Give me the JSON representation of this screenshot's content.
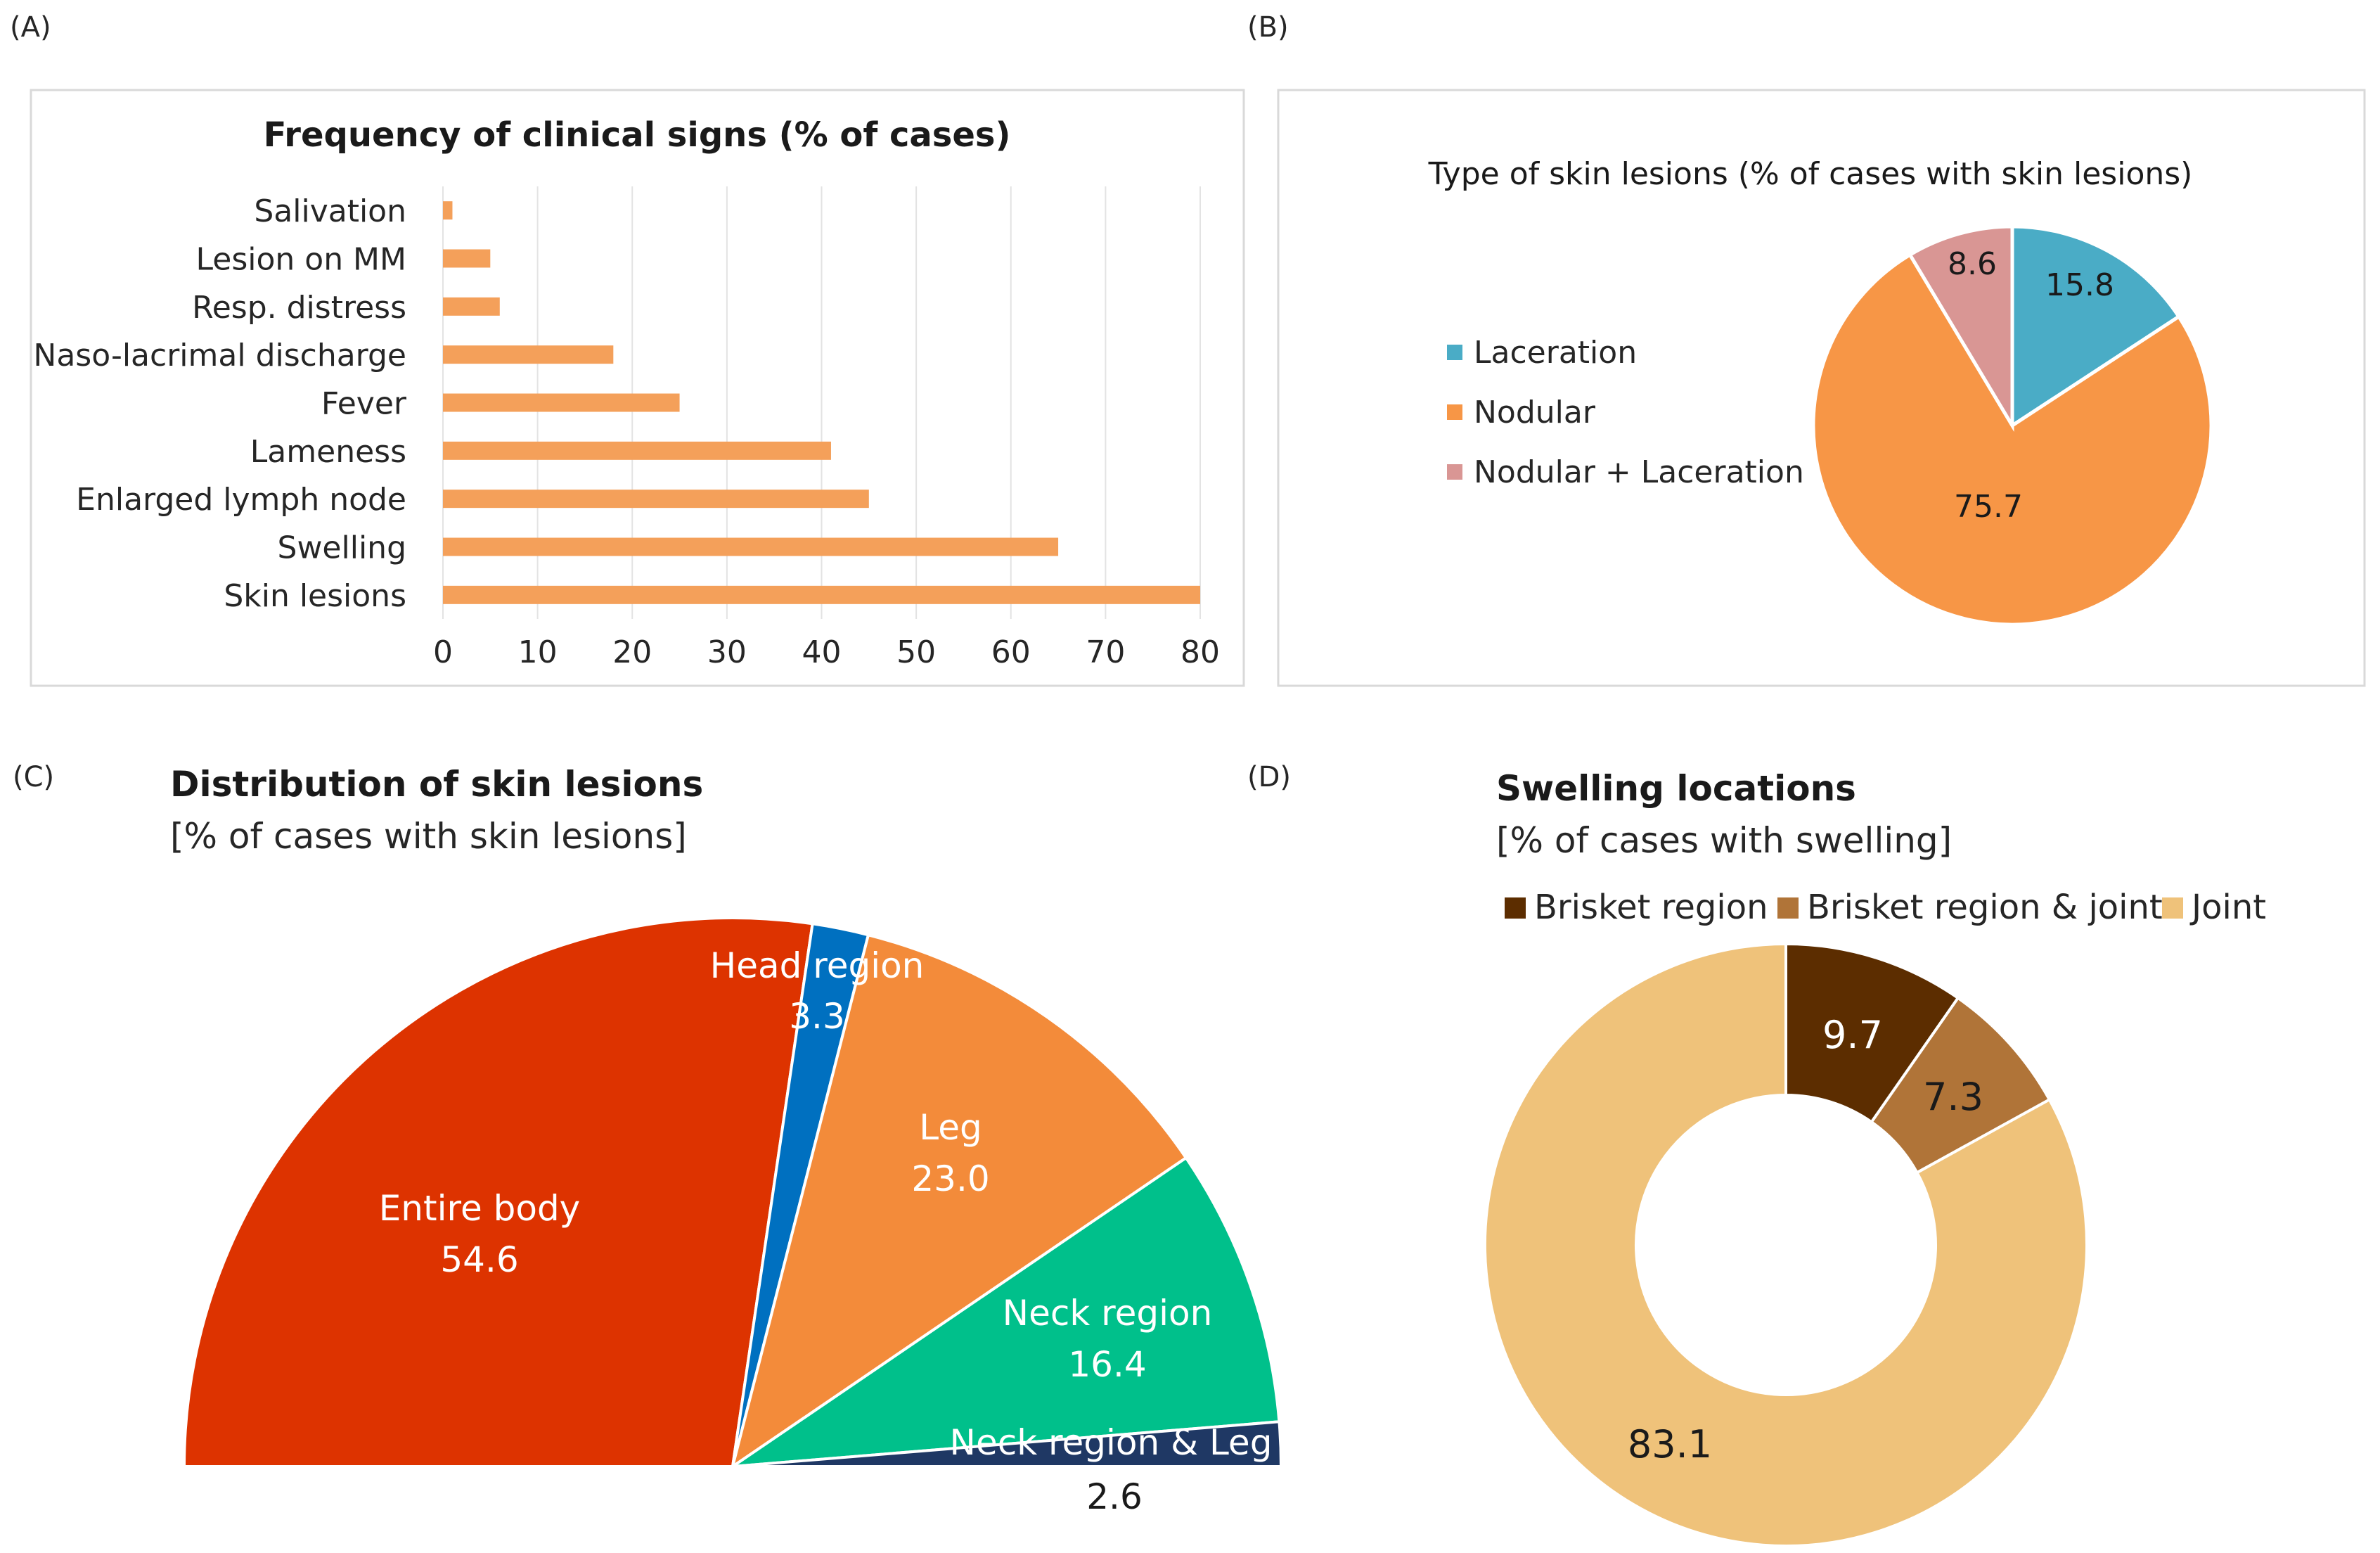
{
  "panel_labels": [
    "(A)",
    "(B)",
    "(C)",
    "(D)"
  ],
  "chart_data": [
    {
      "panel": "(A)",
      "type": "bar",
      "orientation": "horizontal",
      "title": "Frequency of clinical signs (% of cases)",
      "categories": [
        "Salivation",
        "Lesion on MM",
        "Resp. distress",
        "Naso-lacrimal discharge",
        "Fever",
        "Lameness",
        "Enlarged lymph node",
        "Swelling",
        "Skin lesions"
      ],
      "values": [
        1,
        5,
        6,
        18,
        25,
        41,
        45,
        65,
        80
      ],
      "xticks": [
        0,
        10,
        20,
        30,
        40,
        50,
        60,
        70,
        80
      ],
      "xlim": [
        0,
        80
      ],
      "grid": true,
      "color": "#f4a05a"
    },
    {
      "panel": "(B)",
      "type": "pie",
      "title": "Type of skin lesions (% of cases with skin lesions)",
      "labels": [
        "Laceration",
        "Nodular",
        "Nodular + Laceration"
      ],
      "values": [
        15.8,
        75.7,
        8.6
      ],
      "value_labels": [
        "15.8",
        "75.7",
        "8.6"
      ],
      "colors": [
        "#4aacc6",
        "#f79646",
        "#d99694"
      ],
      "legend": "left"
    },
    {
      "panel": "(C)",
      "type": "pie",
      "subtype": "half-pie",
      "title": "Distribution of skin lesions",
      "subtitle": "[% of cases with skin lesions]",
      "labels": [
        "Entire body",
        "Head region",
        "Leg",
        "Neck region",
        "Neck region & Leg"
      ],
      "values": [
        54.6,
        3.3,
        23.0,
        16.4,
        2.6
      ],
      "value_labels": [
        "54.6",
        "3.3",
        "23.0",
        "16.4",
        "2.6"
      ],
      "colors": [
        "#dd3300",
        "#0070c0",
        "#f38b3a",
        "#00c08b",
        "#1f3864"
      ]
    },
    {
      "panel": "(D)",
      "type": "pie",
      "subtype": "donut",
      "title": "Swelling locations",
      "subtitle": "[% of cases with swelling]",
      "labels": [
        "Brisket region",
        "Brisket region & joint",
        "Joint"
      ],
      "values": [
        9.7,
        7.3,
        83.1
      ],
      "value_labels": [
        "9.7",
        "7.3",
        "83.1"
      ],
      "colors": [
        "#5c2d00",
        "#b07438",
        "#efc27a"
      ],
      "legend": "top"
    }
  ]
}
